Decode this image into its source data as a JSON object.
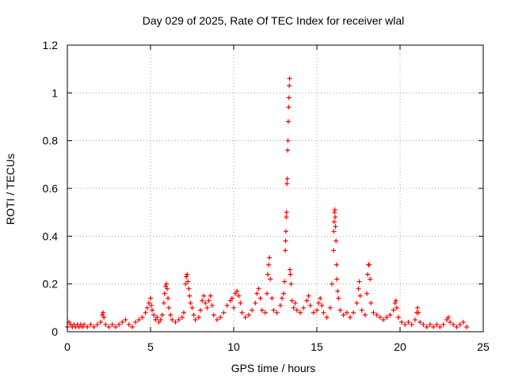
{
  "chart_data": {
    "type": "scatter",
    "title": "Day 029 of 2025, Rate Of TEC Index for receiver wlal",
    "xlabel": "GPS time / hours",
    "ylabel": "ROTI / TECUs",
    "xlim": [
      0,
      25
    ],
    "ylim": [
      0,
      1.2
    ],
    "x_ticks": [
      0,
      5,
      10,
      15,
      20,
      25
    ],
    "x_tick_labels": [
      "0",
      "5",
      "10",
      "15",
      "20",
      "25"
    ],
    "y_ticks": [
      0,
      0.2,
      0.4,
      0.6,
      0.8,
      1.0,
      1.2
    ],
    "y_tick_labels": [
      "0",
      "0.2",
      "0.4",
      "0.6",
      "0.8",
      "1",
      "1.2"
    ],
    "grid": true,
    "marker": "plus",
    "color": "#ff0000",
    "points": [
      [
        0.0,
        0.02
      ],
      [
        0.1,
        0.04
      ],
      [
        0.2,
        0.03
      ],
      [
        0.3,
        0.02
      ],
      [
        0.4,
        0.03
      ],
      [
        0.5,
        0.02
      ],
      [
        0.6,
        0.03
      ],
      [
        0.7,
        0.02
      ],
      [
        0.8,
        0.03
      ],
      [
        0.9,
        0.02
      ],
      [
        1.0,
        0.03
      ],
      [
        1.2,
        0.02
      ],
      [
        1.4,
        0.03
      ],
      [
        1.6,
        0.02
      ],
      [
        1.8,
        0.03
      ],
      [
        2.0,
        0.04
      ],
      [
        2.1,
        0.07
      ],
      [
        2.15,
        0.08
      ],
      [
        2.2,
        0.06
      ],
      [
        2.3,
        0.03
      ],
      [
        2.5,
        0.02
      ],
      [
        2.7,
        0.03
      ],
      [
        2.9,
        0.02
      ],
      [
        3.1,
        0.03
      ],
      [
        3.3,
        0.04
      ],
      [
        3.5,
        0.05
      ],
      [
        3.7,
        0.03
      ],
      [
        3.9,
        0.02
      ],
      [
        4.1,
        0.04
      ],
      [
        4.3,
        0.05
      ],
      [
        4.5,
        0.06
      ],
      [
        4.7,
        0.08
      ],
      [
        4.8,
        0.1
      ],
      [
        4.9,
        0.12
      ],
      [
        5.0,
        0.14
      ],
      [
        5.05,
        0.11
      ],
      [
        5.1,
        0.09
      ],
      [
        5.2,
        0.07
      ],
      [
        5.3,
        0.05
      ],
      [
        5.4,
        0.06
      ],
      [
        5.5,
        0.04
      ],
      [
        5.6,
        0.05
      ],
      [
        5.7,
        0.07
      ],
      [
        5.8,
        0.12
      ],
      [
        5.85,
        0.16
      ],
      [
        5.9,
        0.19
      ],
      [
        5.95,
        0.2
      ],
      [
        6.0,
        0.18
      ],
      [
        6.05,
        0.14
      ],
      [
        6.1,
        0.1
      ],
      [
        6.2,
        0.07
      ],
      [
        6.3,
        0.05
      ],
      [
        6.5,
        0.04
      ],
      [
        6.7,
        0.05
      ],
      [
        6.9,
        0.06
      ],
      [
        7.0,
        0.08
      ],
      [
        7.1,
        0.2
      ],
      [
        7.15,
        0.23
      ],
      [
        7.2,
        0.24
      ],
      [
        7.25,
        0.21
      ],
      [
        7.3,
        0.18
      ],
      [
        7.35,
        0.15
      ],
      [
        7.4,
        0.12
      ],
      [
        7.5,
        0.1
      ],
      [
        7.6,
        0.07
      ],
      [
        7.7,
        0.05
      ],
      [
        7.9,
        0.06
      ],
      [
        8.0,
        0.09
      ],
      [
        8.1,
        0.13
      ],
      [
        8.2,
        0.15
      ],
      [
        8.3,
        0.12
      ],
      [
        8.4,
        0.1
      ],
      [
        8.5,
        0.13
      ],
      [
        8.6,
        0.15
      ],
      [
        8.7,
        0.11
      ],
      [
        8.8,
        0.07
      ],
      [
        9.0,
        0.05
      ],
      [
        9.2,
        0.06
      ],
      [
        9.4,
        0.08
      ],
      [
        9.6,
        0.11
      ],
      [
        9.8,
        0.13
      ],
      [
        9.9,
        0.14
      ],
      [
        10.0,
        0.1
      ],
      [
        10.1,
        0.16
      ],
      [
        10.2,
        0.17
      ],
      [
        10.3,
        0.15
      ],
      [
        10.4,
        0.12
      ],
      [
        10.5,
        0.08
      ],
      [
        10.7,
        0.06
      ],
      [
        10.9,
        0.07
      ],
      [
        11.1,
        0.09
      ],
      [
        11.3,
        0.12
      ],
      [
        11.4,
        0.16
      ],
      [
        11.5,
        0.18
      ],
      [
        11.6,
        0.14
      ],
      [
        11.7,
        0.09
      ],
      [
        11.9,
        0.08
      ],
      [
        12.0,
        0.16
      ],
      [
        12.05,
        0.24
      ],
      [
        12.1,
        0.28
      ],
      [
        12.15,
        0.31
      ],
      [
        12.2,
        0.22
      ],
      [
        12.3,
        0.14
      ],
      [
        12.4,
        0.09
      ],
      [
        12.6,
        0.08
      ],
      [
        12.8,
        0.11
      ],
      [
        12.9,
        0.14
      ],
      [
        13.0,
        0.16
      ],
      [
        13.05,
        0.21
      ],
      [
        13.1,
        0.34
      ],
      [
        13.12,
        0.38
      ],
      [
        13.14,
        0.42
      ],
      [
        13.16,
        0.48
      ],
      [
        13.18,
        0.5
      ],
      [
        13.2,
        0.62
      ],
      [
        13.22,
        0.64
      ],
      [
        13.24,
        0.76
      ],
      [
        13.26,
        0.8
      ],
      [
        13.28,
        0.88
      ],
      [
        13.3,
        0.94
      ],
      [
        13.32,
        0.98
      ],
      [
        13.34,
        1.03
      ],
      [
        13.36,
        1.06
      ],
      [
        13.38,
        0.26
      ],
      [
        13.4,
        0.24
      ],
      [
        13.45,
        0.2
      ],
      [
        13.5,
        0.13
      ],
      [
        13.6,
        0.1
      ],
      [
        13.7,
        0.12
      ],
      [
        13.8,
        0.09
      ],
      [
        14.0,
        0.08
      ],
      [
        14.2,
        0.1
      ],
      [
        14.4,
        0.13
      ],
      [
        14.5,
        0.15
      ],
      [
        14.6,
        0.11
      ],
      [
        14.8,
        0.08
      ],
      [
        15.0,
        0.09
      ],
      [
        15.1,
        0.12
      ],
      [
        15.2,
        0.14
      ],
      [
        15.3,
        0.11
      ],
      [
        15.4,
        0.08
      ],
      [
        15.6,
        0.06
      ],
      [
        15.8,
        0.1
      ],
      [
        15.9,
        0.2
      ],
      [
        16.0,
        0.34
      ],
      [
        16.02,
        0.42
      ],
      [
        16.04,
        0.46
      ],
      [
        16.06,
        0.5
      ],
      [
        16.08,
        0.51
      ],
      [
        16.1,
        0.48
      ],
      [
        16.12,
        0.44
      ],
      [
        16.15,
        0.38
      ],
      [
        16.18,
        0.28
      ],
      [
        16.2,
        0.22
      ],
      [
        16.25,
        0.17
      ],
      [
        16.3,
        0.14
      ],
      [
        16.4,
        0.09
      ],
      [
        16.6,
        0.07
      ],
      [
        16.8,
        0.08
      ],
      [
        17.0,
        0.06
      ],
      [
        17.2,
        0.08
      ],
      [
        17.4,
        0.12
      ],
      [
        17.5,
        0.18
      ],
      [
        17.55,
        0.21
      ],
      [
        17.6,
        0.15
      ],
      [
        17.7,
        0.09
      ],
      [
        17.9,
        0.07
      ],
      [
        18.0,
        0.16
      ],
      [
        18.05,
        0.24
      ],
      [
        18.1,
        0.28
      ],
      [
        18.15,
        0.28
      ],
      [
        18.2,
        0.22
      ],
      [
        18.25,
        0.12
      ],
      [
        18.4,
        0.08
      ],
      [
        18.6,
        0.07
      ],
      [
        18.8,
        0.06
      ],
      [
        19.0,
        0.05
      ],
      [
        19.2,
        0.06
      ],
      [
        19.4,
        0.07
      ],
      [
        19.6,
        0.09
      ],
      [
        19.7,
        0.12
      ],
      [
        19.75,
        0.13
      ],
      [
        19.8,
        0.1
      ],
      [
        19.9,
        0.06
      ],
      [
        20.1,
        0.04
      ],
      [
        20.3,
        0.03
      ],
      [
        20.5,
        0.04
      ],
      [
        20.7,
        0.03
      ],
      [
        20.9,
        0.05
      ],
      [
        21.0,
        0.08
      ],
      [
        21.05,
        0.1
      ],
      [
        21.1,
        0.08
      ],
      [
        21.2,
        0.04
      ],
      [
        21.4,
        0.03
      ],
      [
        21.6,
        0.02
      ],
      [
        21.8,
        0.03
      ],
      [
        22.0,
        0.02
      ],
      [
        22.2,
        0.03
      ],
      [
        22.4,
        0.02
      ],
      [
        22.6,
        0.03
      ],
      [
        22.8,
        0.05
      ],
      [
        22.9,
        0.06
      ],
      [
        23.0,
        0.04
      ],
      [
        23.2,
        0.03
      ],
      [
        23.4,
        0.02
      ],
      [
        23.6,
        0.03
      ],
      [
        23.8,
        0.04
      ],
      [
        24.0,
        0.02
      ]
    ]
  }
}
